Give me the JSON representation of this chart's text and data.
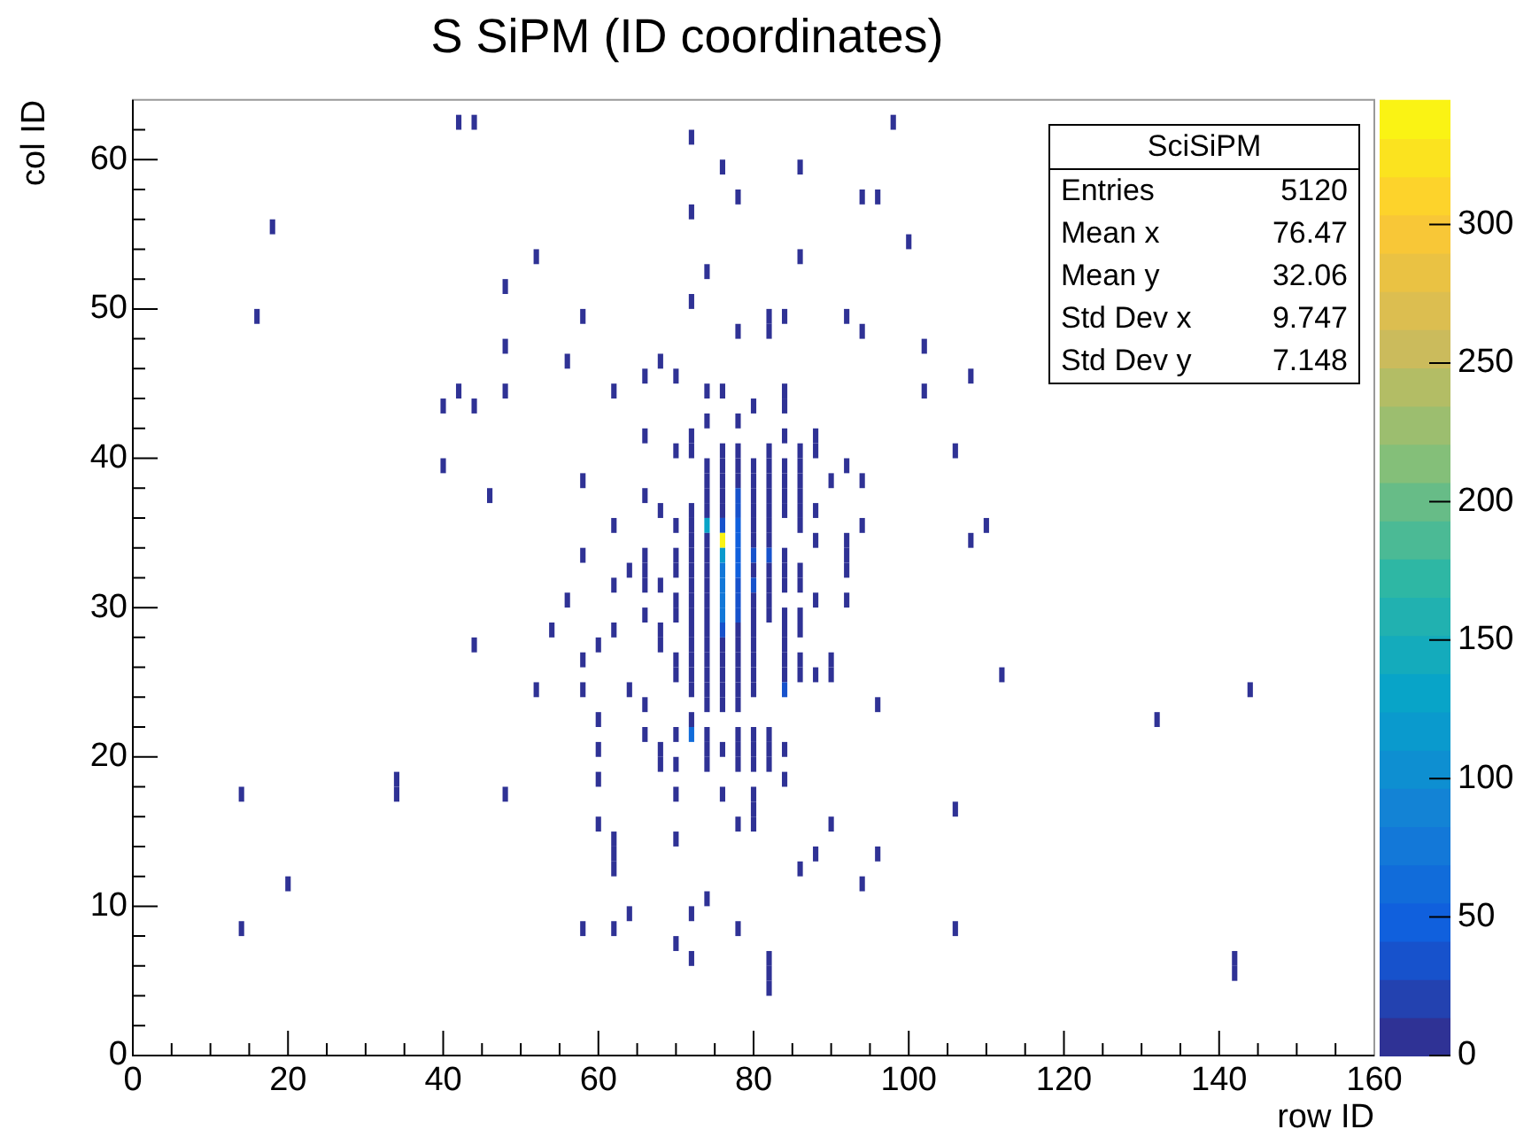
{
  "chart_data": {
    "type": "scatter",
    "title": "S SiPM (ID coordinates)",
    "xlabel": "row ID",
    "ylabel": "col ID",
    "xlim": [
      0,
      160
    ],
    "ylim": [
      0,
      64
    ],
    "xticks": [
      0,
      {
        "value": 5,
        "label": null
      },
      {
        "value": 10,
        "label": null
      },
      {
        "value": 15,
        "label": null
      },
      20,
      {
        "value": 25,
        "label": null
      },
      {
        "value": 30,
        "label": null
      },
      {
        "value": 35,
        "label": null
      },
      40,
      {
        "value": 45,
        "label": null
      },
      {
        "value": 50,
        "label": null
      },
      {
        "value": 55,
        "label": null
      },
      60,
      {
        "value": 65,
        "label": null
      },
      {
        "value": 70,
        "label": null
      },
      {
        "value": 75,
        "label": null
      },
      80,
      {
        "value": 85,
        "label": null
      },
      {
        "value": 90,
        "label": null
      },
      {
        "value": 95,
        "label": null
      },
      100,
      {
        "value": 105,
        "label": null
      },
      {
        "value": 110,
        "label": null
      },
      {
        "value": 115,
        "label": null
      },
      120,
      {
        "value": 125,
        "label": null
      },
      {
        "value": 130,
        "label": null
      },
      {
        "value": 135,
        "label": null
      },
      140,
      {
        "value": 145,
        "label": null
      },
      {
        "value": 150,
        "label": null
      },
      {
        "value": 155,
        "label": null
      },
      160
    ],
    "yticks": [
      0,
      {
        "value": 2,
        "label": null
      },
      {
        "value": 4,
        "label": null
      },
      {
        "value": 6,
        "label": null
      },
      {
        "value": 8,
        "label": null
      },
      10,
      {
        "value": 12,
        "label": null
      },
      {
        "value": 14,
        "label": null
      },
      {
        "value": 16,
        "label": null
      },
      {
        "value": 18,
        "label": null
      },
      20,
      {
        "value": 22,
        "label": null
      },
      {
        "value": 24,
        "label": null
      },
      {
        "value": 26,
        "label": null
      },
      {
        "value": 28,
        "label": null
      },
      30,
      {
        "value": 32,
        "label": null
      },
      {
        "value": 34,
        "label": null
      },
      {
        "value": 36,
        "label": null
      },
      {
        "value": 38,
        "label": null
      },
      40,
      {
        "value": 42,
        "label": null
      },
      {
        "value": 44,
        "label": null
      },
      {
        "value": 46,
        "label": null
      },
      {
        "value": 48,
        "label": null
      },
      50,
      {
        "value": 52,
        "label": null
      },
      {
        "value": 54,
        "label": null
      },
      {
        "value": 56,
        "label": null
      },
      {
        "value": 58,
        "label": null
      },
      60,
      {
        "value": 62,
        "label": null
      }
    ],
    "clim": [
      0,
      345
    ],
    "cticks": [
      0,
      50,
      100,
      150,
      200,
      250,
      300
    ],
    "marker": "square",
    "legend": false,
    "grid": false,
    "x": [
      14,
      14,
      16,
      18,
      20,
      34,
      34,
      40,
      40,
      42,
      42,
      44,
      44,
      44,
      46,
      48,
      48,
      48,
      48,
      52,
      52,
      54,
      56,
      56,
      58,
      58,
      58,
      58,
      58,
      58,
      60,
      60,
      60,
      60,
      60,
      62,
      62,
      62,
      62,
      62,
      62,
      62,
      62,
      64,
      64,
      64,
      66,
      66,
      66,
      66,
      66,
      66,
      66,
      66,
      66,
      68,
      68,
      68,
      68,
      68,
      68,
      68,
      70,
      70,
      70,
      70,
      70,
      70,
      70,
      70,
      70,
      70,
      70,
      70,
      70,
      70,
      72,
      72,
      72,
      72,
      72,
      72,
      72,
      72,
      72,
      72,
      72,
      72,
      72,
      72,
      72,
      72,
      72,
      72,
      72,
      72,
      72,
      72,
      74,
      74,
      74,
      74,
      74,
      74,
      74,
      74,
      74,
      74,
      74,
      74,
      74,
      74,
      74,
      74,
      74,
      74,
      74,
      74,
      74,
      74,
      74,
      74,
      76,
      76,
      76,
      76,
      76,
      76,
      76,
      76,
      76,
      76,
      76,
      76,
      76,
      76,
      76,
      76,
      76,
      76,
      76,
      76,
      76,
      76,
      78,
      78,
      78,
      78,
      78,
      78,
      78,
      78,
      78,
      78,
      78,
      78,
      78,
      78,
      78,
      78,
      78,
      78,
      78,
      78,
      78,
      78,
      78,
      78,
      78,
      78,
      80,
      80,
      80,
      80,
      80,
      80,
      80,
      80,
      80,
      80,
      80,
      80,
      80,
      80,
      80,
      80,
      80,
      80,
      80,
      80,
      80,
      80,
      80,
      82,
      82,
      82,
      82,
      82,
      82,
      82,
      82,
      82,
      82,
      82,
      82,
      82,
      82,
      82,
      82,
      82,
      82,
      82,
      82,
      84,
      84,
      84,
      84,
      84,
      84,
      84,
      84,
      84,
      84,
      84,
      84,
      84,
      84,
      84,
      84,
      84,
      84,
      84,
      86,
      86,
      86,
      86,
      86,
      86,
      86,
      86,
      86,
      86,
      86,
      86,
      86,
      86,
      86,
      88,
      88,
      88,
      88,
      88,
      88,
      88,
      90,
      90,
      90,
      90,
      92,
      92,
      92,
      92,
      92,
      92,
      94,
      94,
      94,
      94,
      94,
      96,
      96,
      96,
      98,
      100,
      102,
      102,
      106,
      106,
      106,
      108,
      108,
      110,
      112,
      132,
      142,
      142,
      144
    ],
    "values": [
      17.5,
      8.5,
      49.5,
      55.5,
      11.5,
      18.5,
      17.5,
      43.5,
      39.5,
      62.5,
      44.5,
      62.5,
      43.5,
      27.5,
      37.5,
      51.5,
      47.5,
      44.5,
      17.5,
      53.5,
      24.5,
      28.5,
      46.5,
      30.5,
      49.5,
      38.5,
      33.5,
      26.5,
      24.5,
      8.5,
      27.5,
      22.5,
      20.5,
      18.5,
      15.5,
      44.5,
      35.5,
      31.5,
      28.5,
      14.5,
      13.5,
      12.5,
      8.5,
      32.5,
      24.5,
      9.5,
      45.5,
      41.5,
      37.5,
      33.5,
      32.5,
      31.5,
      29.5,
      23.5,
      21.5,
      46.5,
      36.5,
      31.5,
      28.5,
      27.5,
      20.5,
      19.5,
      45.5,
      40.5,
      35.5,
      33.5,
      32.5,
      30.5,
      29.5,
      26.5,
      25.5,
      21.5,
      19.5,
      17.5,
      14.5,
      7.5,
      61.5,
      56.5,
      50.5,
      41.5,
      40.5,
      36.5,
      35.5,
      34.5,
      33.5,
      32.5,
      31.5,
      30.5,
      29.5,
      28.5,
      27.5,
      26.5,
      25.5,
      24.5,
      22.5,
      21.5,
      9.5,
      6.5,
      52.5,
      44.5,
      42.5,
      39.5,
      38.5,
      37.5,
      36.5,
      35.5,
      34.5,
      33.5,
      32.5,
      31.5,
      30.5,
      29.5,
      28.5,
      27.5,
      26.5,
      25.5,
      24.5,
      23.5,
      21.5,
      20.5,
      19.5,
      10.5,
      59.5,
      44.5,
      40.5,
      39.5,
      38.5,
      37.5,
      36.5,
      35.5,
      34.5,
      33.5,
      32.5,
      31.5,
      30.5,
      29.5,
      28.5,
      27.5,
      26.5,
      25.5,
      24.5,
      23.5,
      20.5,
      17.5,
      57.5,
      48.5,
      42.5,
      40.5,
      39.5,
      38.5,
      37.5,
      36.5,
      35.5,
      34.5,
      33.5,
      32.5,
      31.5,
      30.5,
      29.5,
      28.5,
      27.5,
      26.5,
      25.5,
      24.5,
      23.5,
      21.5,
      20.5,
      19.5,
      15.5,
      8.5,
      43.5,
      39.5,
      38.5,
      37.5,
      36.5,
      35.5,
      34.5,
      33.5,
      32.5,
      31.5,
      30.5,
      29.5,
      28.5,
      27.5,
      26.5,
      25.5,
      24.5,
      21.5,
      20.5,
      19.5,
      17.5,
      16.5,
      15.5,
      49.5,
      48.5,
      40.5,
      39.5,
      38.5,
      37.5,
      36.5,
      35.5,
      34.5,
      33.5,
      32.5,
      31.5,
      30.5,
      29.5,
      21.5,
      20.5,
      19.5,
      6.5,
      5.5,
      4.5,
      49.5,
      44.5,
      43.5,
      41.5,
      39.5,
      38.5,
      37.5,
      36.5,
      33.5,
      32.5,
      31.5,
      29.5,
      28.5,
      27.5,
      26.5,
      25.5,
      24.5,
      20.5,
      18.5,
      59.5,
      53.5,
      40.5,
      39.5,
      38.5,
      37.5,
      36.5,
      35.5,
      32.5,
      31.5,
      29.5,
      28.5,
      26.5,
      25.5,
      12.5,
      41.5,
      40.5,
      36.5,
      34.5,
      30.5,
      25.5,
      13.5,
      38.5,
      26.5,
      25.5,
      15.5,
      49.5,
      39.5,
      34.5,
      33.5,
      32.5,
      30.5,
      57.5,
      48.5,
      38.5,
      35.5,
      11.5,
      57.5,
      23.5,
      13.5,
      62.5,
      54.5,
      47.5,
      44.5,
      40.5,
      16.5,
      8.5,
      45.5,
      34.5,
      35.5,
      25.5,
      22.5,
      6.5,
      5.5,
      24.5
    ],
    "cvalues": [
      5,
      5,
      5,
      5,
      5,
      5,
      5,
      5,
      5,
      5,
      5,
      5,
      5,
      5,
      5,
      5,
      5,
      5,
      5,
      5,
      5,
      5,
      5,
      5,
      5,
      5,
      5,
      5,
      5,
      5,
      5,
      5,
      5,
      5,
      5,
      5,
      5,
      5,
      5,
      5,
      5,
      5,
      5,
      5,
      5,
      5,
      5,
      5,
      5,
      5,
      5,
      5,
      5,
      5,
      5,
      5,
      5,
      5,
      5,
      5,
      5,
      5,
      5,
      5,
      5,
      5,
      5,
      5,
      5,
      5,
      5,
      5,
      5,
      5,
      5,
      5,
      5,
      5,
      5,
      10,
      10,
      10,
      10,
      10,
      10,
      10,
      10,
      10,
      10,
      10,
      10,
      10,
      10,
      10,
      10,
      60,
      5,
      5,
      5,
      5,
      5,
      10,
      10,
      10,
      10,
      130,
      10,
      10,
      10,
      10,
      10,
      10,
      10,
      10,
      10,
      10,
      10,
      10,
      10,
      10,
      10,
      5,
      5,
      5,
      10,
      10,
      10,
      10,
      10,
      40,
      340,
      120,
      70,
      70,
      70,
      70,
      40,
      10,
      10,
      10,
      10,
      10,
      10,
      5,
      5,
      5,
      5,
      10,
      10,
      10,
      40,
      40,
      50,
      50,
      50,
      50,
      40,
      40,
      40,
      10,
      10,
      10,
      10,
      10,
      10,
      10,
      10,
      10,
      5,
      5,
      5,
      10,
      10,
      10,
      10,
      10,
      10,
      40,
      10,
      40,
      10,
      10,
      10,
      10,
      10,
      10,
      10,
      10,
      10,
      10,
      5,
      5,
      5,
      5,
      5,
      10,
      10,
      10,
      10,
      10,
      10,
      10,
      40,
      10,
      10,
      10,
      10,
      10,
      10,
      10,
      5,
      5,
      5,
      5,
      5,
      5,
      5,
      10,
      10,
      10,
      10,
      10,
      10,
      10,
      10,
      10,
      10,
      10,
      10,
      40,
      10,
      5,
      5,
      5,
      10,
      10,
      10,
      10,
      10,
      10,
      10,
      10,
      10,
      10,
      10,
      10,
      5,
      5,
      5,
      5,
      5,
      5,
      5,
      5,
      5,
      5,
      5,
      5,
      5,
      5,
      5,
      5,
      5,
      5,
      5,
      5,
      5,
      5,
      5,
      5,
      5,
      5,
      5,
      5,
      5,
      5,
      5,
      5,
      5,
      5,
      5,
      5,
      5,
      5,
      5,
      5,
      5
    ],
    "annotations": [
      "SciSiPM",
      "Entries 5120",
      "Mean x 76.47",
      "Mean y 32.06",
      "Std Dev x 9.747",
      "Std Dev y 7.148"
    ]
  }
}
